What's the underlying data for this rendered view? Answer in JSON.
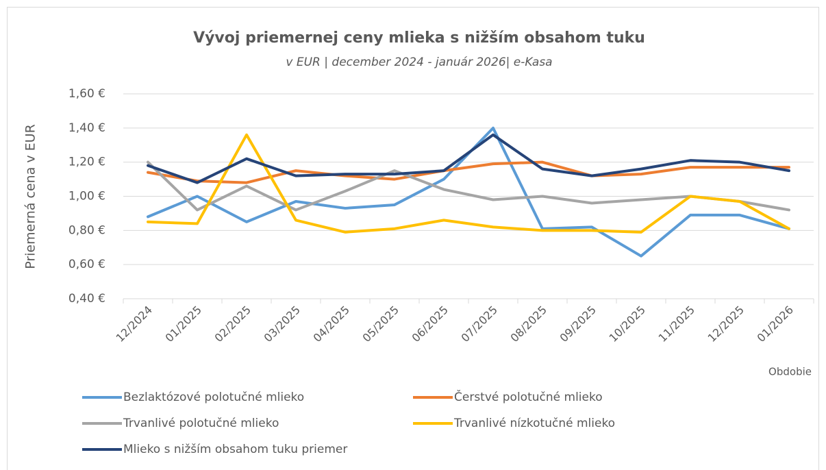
{
  "chart_data": {
    "type": "line",
    "title": "Vývoj priemernej ceny mlieka s nižším obsahom tuku",
    "subtitle": "v EUR | december 2024 - január 2026| e-Kasa",
    "y_label": "Priemerná cena v EUR",
    "x_label": "Obdobie",
    "categories": [
      "12/2024",
      "01/2025",
      "02/2025",
      "03/2025",
      "04/2025",
      "05/2025",
      "06/2025",
      "07/2025",
      "08/2025",
      "09/2025",
      "10/2025",
      "11/2025",
      "12/2025",
      "01/2026"
    ],
    "series": [
      {
        "name": "Bezlaktózové polotučné mlieko",
        "color": "#5b9bd5",
        "values": [
          0.88,
          1.0,
          0.85,
          0.97,
          0.93,
          0.95,
          1.1,
          1.4,
          0.81,
          0.82,
          0.65,
          0.89,
          0.89,
          0.81
        ]
      },
      {
        "name": "Čerstvé polotučné mlieko",
        "color": "#ed7d31",
        "values": [
          1.14,
          1.09,
          1.08,
          1.15,
          1.12,
          1.1,
          1.15,
          1.19,
          1.2,
          1.12,
          1.13,
          1.17,
          1.17,
          1.17
        ]
      },
      {
        "name": "Trvanlivé polotučné mlieko",
        "color": "#a5a5a5",
        "values": [
          1.2,
          0.92,
          1.06,
          0.92,
          1.03,
          1.15,
          1.04,
          0.98,
          1.0,
          0.96,
          0.98,
          1.0,
          0.97,
          0.92
        ]
      },
      {
        "name": "Trvanlivé nízkotučné mlieko",
        "color": "#ffc000",
        "values": [
          0.85,
          0.84,
          1.36,
          0.86,
          0.79,
          0.81,
          0.86,
          0.82,
          0.8,
          0.8,
          0.79,
          1.0,
          0.97,
          0.81
        ]
      },
      {
        "name": "Mlieko s nižším obsahom tuku priemer",
        "color": "#264478",
        "values": [
          1.18,
          1.08,
          1.22,
          1.12,
          1.13,
          1.13,
          1.15,
          1.36,
          1.16,
          1.12,
          1.16,
          1.21,
          1.2,
          1.15
        ]
      }
    ],
    "ylim": [
      0.4,
      1.6
    ],
    "yticks": [
      {
        "value": 0.4,
        "label": "0,40 €"
      },
      {
        "value": 0.6,
        "label": "0,60 €"
      },
      {
        "value": 0.8,
        "label": "0,80 €"
      },
      {
        "value": 1.0,
        "label": "1,00 €"
      },
      {
        "value": 1.2,
        "label": "1,20 €"
      },
      {
        "value": 1.4,
        "label": "1,40 €"
      },
      {
        "value": 1.6,
        "label": "1,60 €"
      }
    ],
    "grid": true
  }
}
